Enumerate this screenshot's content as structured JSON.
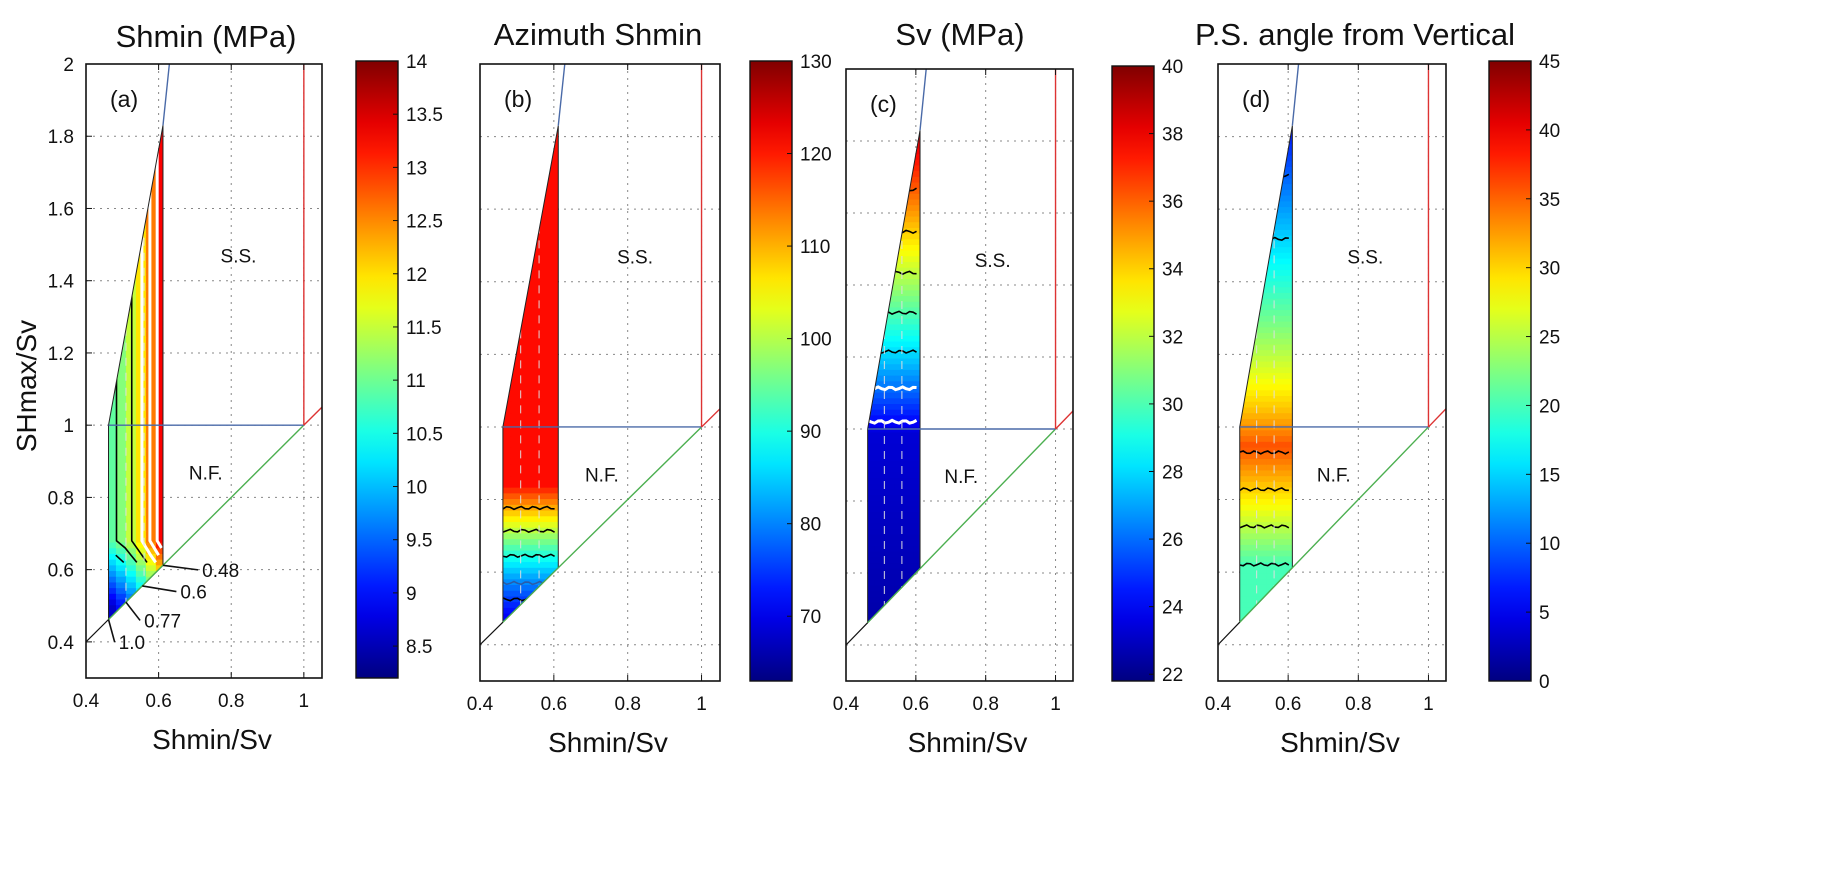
{
  "figure": {
    "ylabel": "SHmax/Sv"
  },
  "chart_data": [
    {
      "type": "heatmap",
      "panel": "(a)",
      "title": "Shmin (MPa)",
      "xlabel": "Shmin/Sv",
      "ylabel": "SHmax/Sv",
      "xlim": [
        0.4,
        1.05
      ],
      "ylim": [
        0.3,
        2.0
      ],
      "xticks": [
        "0.4",
        "0.6",
        "0.8",
        "1"
      ],
      "yticks": [
        "0.4",
        "0.6",
        "0.8",
        "1",
        "1.2",
        "1.4",
        "1.6",
        "1.8",
        "2"
      ],
      "grid": true,
      "colorbar": {
        "min": 8.2,
        "max": 14,
        "ticks": [
          "8.5",
          "9",
          "9.5",
          "10",
          "10.5",
          "11",
          "11.5",
          "12",
          "12.5",
          "13",
          "13.5",
          "14"
        ]
      },
      "region_labels": [
        "S.S.",
        "N.F."
      ],
      "annotations": [
        "0.48",
        "0.6",
        "0.77",
        "1.0"
      ],
      "contour_levels": [
        8.5,
        9.5,
        10.5,
        11.0,
        11.5,
        12.0,
        12.5,
        13.0,
        13.5
      ],
      "field": "x=0.46..0.61 wedge; value rises steeply toward Shmin/Sv=0.61 (yellow ≈11.5 to red ≈13.3), lower band blue/green ≈8.5–10.5 near the 0.48–0.6 corner"
    },
    {
      "type": "heatmap",
      "panel": "(b)",
      "title": "Azimuth Shmin",
      "xlabel": "Shmin/Sv",
      "xlim": [
        0.4,
        1.05
      ],
      "ylim": [
        0.3,
        2.0
      ],
      "xticks": [
        "0.4",
        "0.6",
        "0.8",
        "1"
      ],
      "grid": true,
      "colorbar": {
        "min": 63,
        "max": 130,
        "ticks": [
          "70",
          "80",
          "90",
          "100",
          "110",
          "120",
          "130"
        ]
      },
      "region_labels": [
        "S.S.",
        "N.F."
      ],
      "contour_levels": [
        75,
        80,
        90,
        100,
        110
      ],
      "field": "≈120 (red) for SHmax/Sv > 0.82, decreasing through orange/yellow/green to ≈70 (dark blue) at the lower corner"
    },
    {
      "type": "heatmap",
      "panel": "(c)",
      "title": "Sv (MPa)",
      "xlabel": "Shmin/Sv",
      "xlim": [
        0.4,
        1.05
      ],
      "ylim": [
        0.3,
        2.0
      ],
      "xticks": [
        "0.4",
        "0.6",
        "0.8",
        "1"
      ],
      "grid": true,
      "colorbar": {
        "min": 21.8,
        "max": 40,
        "ticks": [
          "22",
          "24",
          "26",
          "28",
          "30",
          "32",
          "34",
          "36",
          "38",
          "40"
        ]
      },
      "region_labels": [
        "S.S.",
        "N.F."
      ],
      "contour_levels": [
        24,
        26,
        28,
        30,
        32,
        34,
        36,
        38
      ],
      "field": "≈23 (dark blue) below SHmax/Sv 1.0, rising with SHmax/Sv to ≈38 (red) at 1.8"
    },
    {
      "type": "heatmap",
      "panel": "(d)",
      "title": "P.S. angle from Vertical",
      "xlabel": "Shmin/Sv",
      "xlim": [
        0.4,
        1.05
      ],
      "ylim": [
        0.3,
        2.0
      ],
      "xticks": [
        "0.4",
        "0.6",
        "0.8",
        "1"
      ],
      "grid": true,
      "colorbar": {
        "min": 0,
        "max": 45,
        "ticks": [
          "0",
          "5",
          "10",
          "15",
          "20",
          "25",
          "30",
          "35",
          "40",
          "45"
        ]
      },
      "region_labels": [
        "S.S.",
        "N.F."
      ],
      "contour_levels": [
        10,
        15,
        20,
        25,
        30,
        35
      ],
      "field": "≈20 (green) at the bottom, peak ≈35 (red-orange) near SHmax/Sv 0.8–1.0, decreasing to ≈8 (blue) toward 1.8"
    }
  ]
}
